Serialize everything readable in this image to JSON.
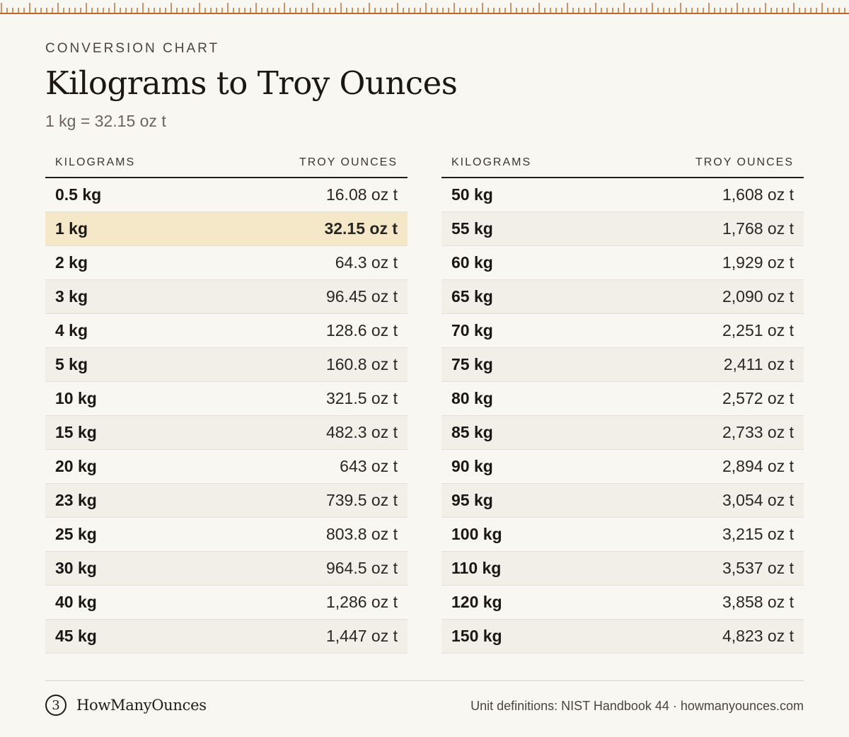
{
  "header": {
    "eyebrow": "CONVERSION CHART",
    "title": "Kilograms to Troy Ounces",
    "subtitle": "1 kg = 32.15 oz t"
  },
  "table": {
    "col_kg": "KILOGRAMS",
    "col_oz": "TROY OUNCES",
    "left_rows": [
      {
        "kg": "0.5 kg",
        "oz": "16.08 oz t"
      },
      {
        "kg": "1 kg",
        "oz": "32.15 oz t",
        "highlight": true
      },
      {
        "kg": "2 kg",
        "oz": "64.3 oz t"
      },
      {
        "kg": "3 kg",
        "oz": "96.45 oz t"
      },
      {
        "kg": "4 kg",
        "oz": "128.6 oz t"
      },
      {
        "kg": "5 kg",
        "oz": "160.8 oz t"
      },
      {
        "kg": "10 kg",
        "oz": "321.5 oz t"
      },
      {
        "kg": "15 kg",
        "oz": "482.3 oz t"
      },
      {
        "kg": "20 kg",
        "oz": "643 oz t"
      },
      {
        "kg": "23 kg",
        "oz": "739.5 oz t"
      },
      {
        "kg": "25 kg",
        "oz": "803.8 oz t"
      },
      {
        "kg": "30 kg",
        "oz": "964.5 oz t"
      },
      {
        "kg": "40 kg",
        "oz": "1,286 oz t"
      },
      {
        "kg": "45 kg",
        "oz": "1,447 oz t"
      }
    ],
    "right_rows": [
      {
        "kg": "50 kg",
        "oz": "1,608 oz t"
      },
      {
        "kg": "55 kg",
        "oz": "1,768 oz t"
      },
      {
        "kg": "60 kg",
        "oz": "1,929 oz t"
      },
      {
        "kg": "65 kg",
        "oz": "2,090 oz t"
      },
      {
        "kg": "70 kg",
        "oz": "2,251 oz t"
      },
      {
        "kg": "75 kg",
        "oz": "2,411 oz t"
      },
      {
        "kg": "80 kg",
        "oz": "2,572 oz t"
      },
      {
        "kg": "85 kg",
        "oz": "2,733 oz t"
      },
      {
        "kg": "90 kg",
        "oz": "2,894 oz t"
      },
      {
        "kg": "95 kg",
        "oz": "3,054 oz t"
      },
      {
        "kg": "100 kg",
        "oz": "3,215 oz t"
      },
      {
        "kg": "110 kg",
        "oz": "3,537 oz t"
      },
      {
        "kg": "120 kg",
        "oz": "3,858 oz t"
      },
      {
        "kg": "150 kg",
        "oz": "4,823 oz t"
      }
    ]
  },
  "footer": {
    "brand_mark": "3",
    "brand_name": "HowManyOunces",
    "note": "Unit definitions: NIST Handbook 44 · howmanyounces.com"
  },
  "colors": {
    "accent": "#b8672e",
    "highlight": "#f5e8c8",
    "background": "#f9f7f2"
  }
}
